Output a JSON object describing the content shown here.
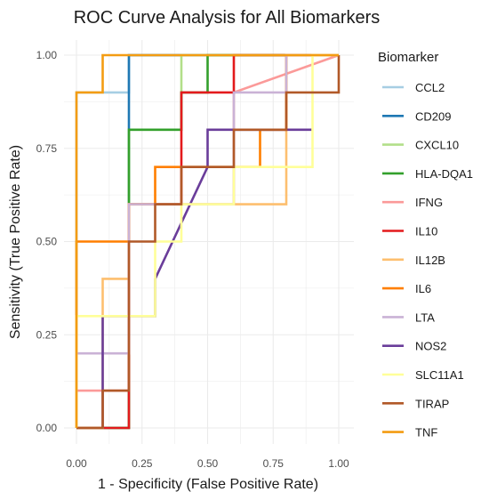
{
  "chart_data": {
    "type": "line",
    "title": "ROC Curve Analysis for All Biomarkers",
    "xlabel": "1 - Specificity (False Positive Rate)",
    "ylabel": "Sensitivity (True Positive Rate)",
    "xlim": [
      0,
      1
    ],
    "ylim": [
      0,
      1
    ],
    "x_ticks": [
      "0.00",
      "0.25",
      "0.50",
      "0.75",
      "1.00"
    ],
    "y_ticks": [
      "0.00",
      "0.25",
      "0.50",
      "0.75",
      "1.00"
    ],
    "grid": true,
    "legend": {
      "title": "Biomarker",
      "position": "right"
    },
    "series": [
      {
        "name": "CCL2",
        "color": "#a6cee3",
        "x": [
          0,
          0,
          0.1,
          0.1,
          0.2,
          0.2,
          1
        ],
        "y": [
          0,
          0.9,
          0.9,
          0.9,
          0.9,
          1,
          1
        ]
      },
      {
        "name": "CD209",
        "color": "#1f78b4",
        "x": [
          0,
          0.2,
          0.2,
          0.2,
          1
        ],
        "y": [
          0,
          0,
          0.1,
          1,
          1
        ]
      },
      {
        "name": "CXCL10",
        "color": "#b2df8a",
        "x": [
          0,
          0.2,
          0.2,
          0.4,
          0.4,
          1
        ],
        "y": [
          0,
          0,
          0.8,
          0.8,
          1,
          1
        ]
      },
      {
        "name": "HLA-DQA1",
        "color": "#33a02c",
        "x": [
          0,
          0.2,
          0.2,
          0.2,
          0.4,
          0.4,
          0.5,
          0.5,
          1
        ],
        "y": [
          0,
          0,
          0.6,
          0.8,
          0.8,
          0.9,
          0.9,
          1,
          1
        ]
      },
      {
        "name": "IFNG",
        "color": "#fb9a99",
        "x": [
          0,
          0,
          0.2,
          0.2,
          0.5,
          0.6,
          0.6,
          0.6,
          1
        ],
        "y": [
          0,
          0.1,
          0.1,
          0.6,
          0.6,
          0.6,
          0.7,
          0.9,
          1
        ]
      },
      {
        "name": "IL10",
        "color": "#e31a1c",
        "x": [
          0,
          0.2,
          0.2,
          0.4,
          0.4,
          0.6,
          0.6,
          1
        ],
        "y": [
          0,
          0,
          0.6,
          0.6,
          0.9,
          0.9,
          1,
          1
        ]
      },
      {
        "name": "IL12B",
        "color": "#fdbf6f",
        "x": [
          0,
          0.1,
          0.1,
          0.2,
          0.2,
          0.8,
          0.8,
          0.8,
          1
        ],
        "y": [
          0,
          0,
          0.4,
          0.4,
          0.6,
          0.6,
          0.7,
          1,
          1
        ]
      },
      {
        "name": "IL6",
        "color": "#ff7f00",
        "x": [
          0,
          0,
          0.2,
          0.2,
          0.3,
          0.3,
          0.7,
          0.7,
          0.8,
          0.8,
          1
        ],
        "y": [
          0,
          0.5,
          0.5,
          0.6,
          0.6,
          0.7,
          0.7,
          0.8,
          0.8,
          1,
          1
        ]
      },
      {
        "name": "LTA",
        "color": "#cab2d6",
        "x": [
          0,
          0,
          0.2,
          0.2,
          0.6,
          0.6,
          0.8,
          0.8,
          1
        ],
        "y": [
          0,
          0.2,
          0.2,
          0.6,
          0.6,
          0.9,
          0.9,
          1,
          1
        ]
      },
      {
        "name": "NOS2",
        "color": "#6a3d9a",
        "x": [
          0.1,
          0.1,
          0.2,
          0.2,
          0.3,
          0.3,
          0.5,
          0.5,
          0.9
        ],
        "y": [
          0,
          0.3,
          0.3,
          0.3,
          0.3,
          0.4,
          0.7,
          0.8,
          0.8
        ]
      },
      {
        "name": "SLC11A1",
        "color": "#ffff99",
        "x": [
          0,
          0,
          0.3,
          0.3,
          0.4,
          0.4,
          0.6,
          0.6,
          0.8,
          0.8,
          0.9,
          0.9,
          1
        ],
        "y": [
          0,
          0.3,
          0.3,
          0.5,
          0.5,
          0.6,
          0.6,
          0.7,
          0.7,
          0.7,
          0.7,
          1,
          1
        ]
      },
      {
        "name": "TIRAP",
        "color": "#b15928",
        "x": [
          0,
          0.1,
          0.1,
          0.2,
          0.2,
          0.3,
          0.3,
          0.4,
          0.4,
          0.6,
          0.6,
          0.8,
          0.8,
          1,
          1
        ],
        "y": [
          0,
          0,
          0.1,
          0.1,
          0.5,
          0.5,
          0.6,
          0.6,
          0.7,
          0.7,
          0.8,
          0.8,
          0.9,
          0.9,
          1
        ]
      },
      {
        "name": "TNF",
        "color": "#f39c12",
        "x": [
          0,
          0,
          0.1,
          0.1,
          1
        ],
        "y": [
          0,
          0.9,
          0.9,
          1,
          1
        ]
      }
    ]
  }
}
